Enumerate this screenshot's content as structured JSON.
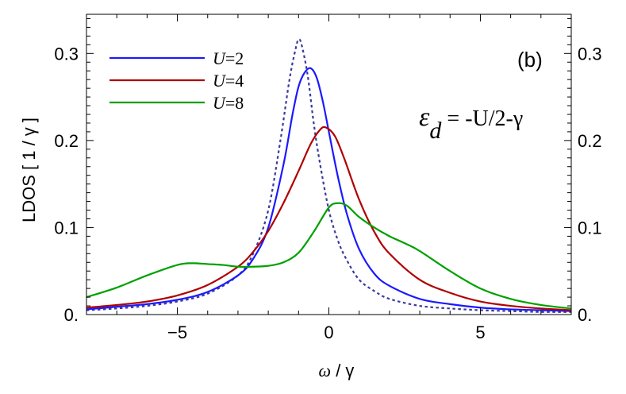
{
  "chart_data": {
    "type": "line",
    "xlabel_symbol": "ω",
    "xlabel_rest": " / γ",
    "ylabel": "LDOS  [ 1 / γ ]",
    "xlim": [
      -8,
      8
    ],
    "ylim": [
      0,
      0.345
    ],
    "x_ticks": [
      -5,
      0,
      5
    ],
    "x_tick_labels": [
      "−5",
      "0",
      "5"
    ],
    "y_ticks": [
      0,
      0.1,
      0.2,
      0.3
    ],
    "y_tick_labels": [
      "0.",
      "0.1",
      "0.2",
      "0.3"
    ],
    "panel_label": "(b)",
    "annotation": {
      "eps": "ε",
      "sub": "d",
      "rest": " = -U/2-γ"
    },
    "legend_position": "top-left",
    "series": [
      {
        "name": "U=2",
        "legend_var": "U",
        "legend_val": "=2",
        "color": "#1a1aff",
        "style": "solid",
        "x": [
          -8,
          -7,
          -6,
          -5,
          -4,
          -3,
          -2.5,
          -2,
          -1.5,
          -1.2,
          -1.0,
          -0.8,
          -0.6,
          -0.4,
          -0.2,
          0,
          0.3,
          0.6,
          1,
          1.5,
          2,
          3,
          4,
          5,
          6,
          7,
          8
        ],
        "y": [
          0.006,
          0.009,
          0.012,
          0.017,
          0.026,
          0.045,
          0.064,
          0.1,
          0.172,
          0.23,
          0.262,
          0.278,
          0.283,
          0.272,
          0.245,
          0.21,
          0.158,
          0.115,
          0.075,
          0.047,
          0.033,
          0.018,
          0.012,
          0.008,
          0.006,
          0.005,
          0.004
        ]
      },
      {
        "name": "U=4",
        "legend_var": "U",
        "legend_val": "=4",
        "color": "#b00000",
        "style": "solid",
        "x": [
          -8,
          -7,
          -6,
          -5,
          -4,
          -3,
          -2.5,
          -2,
          -1.5,
          -1,
          -0.6,
          -0.3,
          -0.1,
          0.2,
          0.5,
          1,
          1.5,
          2,
          3,
          4,
          5,
          6,
          7,
          8
        ],
        "y": [
          0.008,
          0.011,
          0.015,
          0.022,
          0.034,
          0.055,
          0.072,
          0.096,
          0.128,
          0.165,
          0.196,
          0.212,
          0.215,
          0.205,
          0.18,
          0.132,
          0.095,
          0.07,
          0.04,
          0.025,
          0.015,
          0.01,
          0.007,
          0.005
        ]
      },
      {
        "name": "U=8",
        "legend_var": "U",
        "legend_val": "=8",
        "color": "#00a000",
        "style": "solid",
        "x": [
          -8,
          -7,
          -6,
          -5,
          -4.5,
          -4,
          -3.5,
          -3,
          -2.5,
          -2,
          -1.5,
          -1,
          -0.5,
          0,
          0.3,
          0.6,
          1,
          1.5,
          2,
          2.5,
          3,
          4,
          5,
          6,
          7,
          8
        ],
        "y": [
          0.02,
          0.031,
          0.045,
          0.057,
          0.059,
          0.058,
          0.057,
          0.055,
          0.055,
          0.056,
          0.06,
          0.071,
          0.095,
          0.123,
          0.128,
          0.125,
          0.112,
          0.1,
          0.09,
          0.082,
          0.073,
          0.05,
          0.03,
          0.018,
          0.011,
          0.007
        ]
      },
      {
        "name": "",
        "color": "#3a3aa0",
        "style": "dotted",
        "x": [
          -8,
          -7,
          -6,
          -5,
          -4,
          -3,
          -2.5,
          -2,
          -1.6,
          -1.3,
          -1.1,
          -1.0,
          -0.9,
          -0.7,
          -0.5,
          -0.3,
          0,
          0.3,
          0.6,
          1,
          1.5,
          2,
          3,
          4,
          5,
          6,
          7,
          8
        ],
        "y": [
          0.005,
          0.007,
          0.01,
          0.015,
          0.024,
          0.045,
          0.07,
          0.12,
          0.2,
          0.27,
          0.305,
          0.316,
          0.31,
          0.275,
          0.22,
          0.175,
          0.12,
          0.085,
          0.062,
          0.04,
          0.027,
          0.018,
          0.01,
          0.007,
          0.005,
          0.004,
          0.003,
          0.003
        ]
      }
    ]
  }
}
